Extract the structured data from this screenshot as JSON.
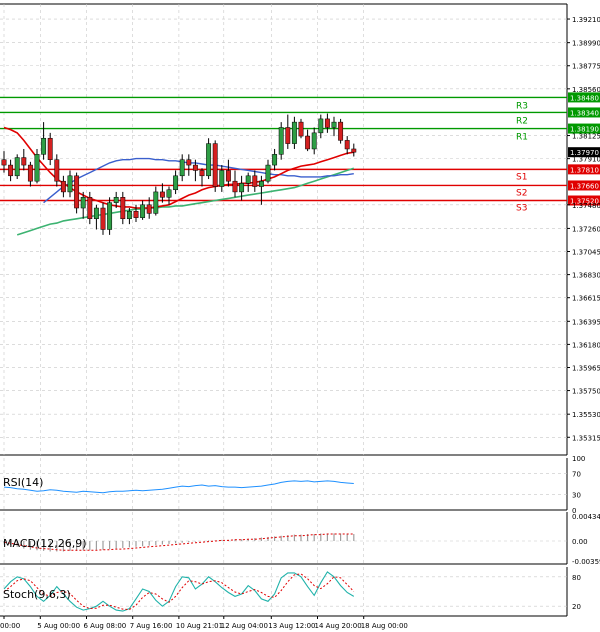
{
  "chart_data": {
    "type": "candlestick",
    "main": {
      "ylim": [
        1.3515,
        1.3935
      ],
      "y_ticks": [
        "1.39210",
        "1.38990",
        "1.38775",
        "1.38560",
        "1.38125",
        "1.37910",
        "1.37480",
        "1.37260",
        "1.37045",
        "1.36830",
        "1.36615",
        "1.36395",
        "1.36180",
        "1.35965",
        "1.35750",
        "1.35530",
        "1.35315"
      ],
      "x_ticks": [
        {
          "label": "00:00",
          "t": 0
        },
        {
          "label": "5 Aug 00:00",
          "t": 5.5
        },
        {
          "label": "6 Aug 08:00",
          "t": 12.5
        },
        {
          "label": "7 Aug 16:00",
          "t": 19.5
        },
        {
          "label": "10 Aug 21:01",
          "t": 26.5
        },
        {
          "label": "12 Aug 04:00",
          "t": 33.3
        },
        {
          "label": "13 Aug 12:00",
          "t": 40.5
        },
        {
          "label": "14 Aug 20:00",
          "t": 47.5
        },
        {
          "label": "18 Aug 00:00",
          "t": 54.5
        }
      ],
      "candles": [
        [
          1.379,
          1.3798,
          1.3778,
          1.3785
        ],
        [
          1.3785,
          1.379,
          1.377,
          1.3775
        ],
        [
          1.3775,
          1.3795,
          1.3772,
          1.3792
        ],
        [
          1.3792,
          1.38,
          1.378,
          1.3785
        ],
        [
          1.3785,
          1.3788,
          1.3765,
          1.377
        ],
        [
          1.377,
          1.38,
          1.3768,
          1.3795
        ],
        [
          1.3795,
          1.3825,
          1.379,
          1.381
        ],
        [
          1.381,
          1.3815,
          1.3785,
          1.379
        ],
        [
          1.379,
          1.3795,
          1.3765,
          1.377
        ],
        [
          1.377,
          1.3775,
          1.3755,
          1.376
        ],
        [
          1.376,
          1.378,
          1.3755,
          1.3775
        ],
        [
          1.3775,
          1.3778,
          1.374,
          1.3745
        ],
        [
          1.3745,
          1.376,
          1.3735,
          1.3755
        ],
        [
          1.3755,
          1.376,
          1.373,
          1.3735
        ],
        [
          1.3735,
          1.3748,
          1.3725,
          1.3745
        ],
        [
          1.3745,
          1.375,
          1.372,
          1.3725
        ],
        [
          1.3725,
          1.3755,
          1.372,
          1.375
        ],
        [
          1.375,
          1.376,
          1.3745,
          1.3755
        ],
        [
          1.3755,
          1.376,
          1.373,
          1.3735
        ],
        [
          1.3735,
          1.3745,
          1.373,
          1.3742
        ],
        [
          1.3742,
          1.3748,
          1.3732,
          1.3736
        ],
        [
          1.3736,
          1.3752,
          1.3734,
          1.3748
        ],
        [
          1.3748,
          1.3755,
          1.3735,
          1.374
        ],
        [
          1.374,
          1.3765,
          1.3738,
          1.376
        ],
        [
          1.376,
          1.3768,
          1.375,
          1.3755
        ],
        [
          1.3755,
          1.3765,
          1.3748,
          1.3762
        ],
        [
          1.3762,
          1.378,
          1.3758,
          1.3775
        ],
        [
          1.3775,
          1.3795,
          1.377,
          1.379
        ],
        [
          1.379,
          1.3795,
          1.3775,
          1.3785
        ],
        [
          1.3785,
          1.379,
          1.377,
          1.378
        ],
        [
          1.378,
          1.3782,
          1.3765,
          1.3775
        ],
        [
          1.3775,
          1.381,
          1.3772,
          1.3805
        ],
        [
          1.3805,
          1.3808,
          1.376,
          1.3765
        ],
        [
          1.3765,
          1.3785,
          1.376,
          1.378
        ],
        [
          1.378,
          1.379,
          1.3765,
          1.377
        ],
        [
          1.377,
          1.378,
          1.3755,
          1.376
        ],
        [
          1.376,
          1.3775,
          1.3752,
          1.3768
        ],
        [
          1.3768,
          1.3778,
          1.376,
          1.3775
        ],
        [
          1.3775,
          1.378,
          1.376,
          1.3765
        ],
        [
          1.3765,
          1.3775,
          1.3748,
          1.377
        ],
        [
          1.377,
          1.379,
          1.3768,
          1.3785
        ],
        [
          1.3785,
          1.38,
          1.378,
          1.3795
        ],
        [
          1.3795,
          1.3825,
          1.379,
          1.382
        ],
        [
          1.382,
          1.3832,
          1.38,
          1.3805
        ],
        [
          1.3805,
          1.383,
          1.38,
          1.3825
        ],
        [
          1.3825,
          1.3828,
          1.381,
          1.3812
        ],
        [
          1.3812,
          1.3818,
          1.3798,
          1.38
        ],
        [
          1.38,
          1.382,
          1.3795,
          1.3815
        ],
        [
          1.3815,
          1.3832,
          1.381,
          1.3828
        ],
        [
          1.3828,
          1.3833,
          1.3815,
          1.382
        ],
        [
          1.382,
          1.383,
          1.3812,
          1.3825
        ],
        [
          1.3825,
          1.3828,
          1.3805,
          1.3808
        ],
        [
          1.3808,
          1.3812,
          1.3795,
          1.38
        ],
        [
          1.38,
          1.3805,
          1.3793,
          1.3797
        ]
      ],
      "ma_red": [
        1.382,
        1.3818,
        1.3815,
        1.3808,
        1.38,
        1.3792,
        1.3785,
        1.3778,
        1.3772,
        1.3768,
        1.3764,
        1.376,
        1.3757,
        1.3754,
        1.3752,
        1.375,
        1.3748,
        1.3747,
        1.3746,
        1.3746,
        1.3745,
        1.3745,
        1.3745,
        1.3746,
        1.3747,
        1.3748,
        1.3751,
        1.3754,
        1.3757,
        1.3759,
        1.3762,
        1.3764,
        1.3765,
        1.3766,
        1.3767,
        1.3767,
        1.3768,
        1.3768,
        1.3769,
        1.377,
        1.3772,
        1.3774,
        1.3777,
        1.378,
        1.3782,
        1.3784,
        1.3785,
        1.3786,
        1.3788,
        1.379,
        1.3792,
        1.3794,
        1.3796,
        1.3797
      ],
      "ma_blue": [
        1.375,
        1.3755,
        1.376,
        1.3765,
        1.3768,
        1.3772,
        1.3775,
        1.3778,
        1.3781,
        1.3784,
        1.3787,
        1.3789,
        1.379,
        1.379,
        1.3791,
        1.3791,
        1.3791,
        1.379,
        1.379,
        1.3789,
        1.3789,
        1.3788,
        1.3787,
        1.3787,
        1.3786,
        1.3785,
        1.3785,
        1.3784,
        1.3783,
        1.3782,
        1.3781,
        1.378,
        1.3779,
        1.3778,
        1.3777,
        1.3776,
        1.3776,
        1.3775,
        1.3775,
        1.3774,
        1.3774,
        1.3774,
        1.3774,
        1.3775,
        1.3775,
        1.3776,
        1.3776,
        1.3777
      ],
      "ma_green": [
        1.372,
        1.3722,
        1.3724,
        1.3726,
        1.3728,
        1.373,
        1.3731,
        1.3733,
        1.3734,
        1.3735,
        1.3736,
        1.3737,
        1.3738,
        1.3739,
        1.374,
        1.3741,
        1.3742,
        1.3743,
        1.3744,
        1.3744,
        1.3745,
        1.3745,
        1.3746,
        1.3746,
        1.3747,
        1.3747,
        1.3748,
        1.3749,
        1.375,
        1.3751,
        1.3752,
        1.3753,
        1.3754,
        1.3755,
        1.3756,
        1.3757,
        1.3758,
        1.3759,
        1.376,
        1.3761,
        1.3762,
        1.3763,
        1.3764,
        1.3766,
        1.3768,
        1.377,
        1.3772,
        1.3774,
        1.3776,
        1.3778,
        1.378,
        1.3782
      ],
      "last_price": {
        "label": "1.37970",
        "value": 1.3797
      },
      "levels": [
        {
          "name": "R3",
          "label": "1.38480",
          "value": 1.3848,
          "color": "#009900"
        },
        {
          "name": "R2",
          "label": "1.38340",
          "value": 1.3834,
          "color": "#009900"
        },
        {
          "name": "R1",
          "label": "1.38190",
          "value": 1.3819,
          "color": "#009900"
        },
        {
          "name": "S1",
          "label": "1.37810",
          "value": 1.3781,
          "color": "#e00000"
        },
        {
          "name": "S2",
          "label": "1.37660",
          "value": 1.3766,
          "color": "#e00000"
        },
        {
          "name": "S3",
          "label": "1.37520",
          "value": 1.3752,
          "color": "#e00000"
        }
      ]
    },
    "rsi": {
      "label": "RSI(14)",
      "y_ticks": [
        "100",
        "70",
        "30",
        "0"
      ],
      "values": [
        44,
        43,
        41,
        40,
        38,
        36,
        37,
        39,
        38,
        36,
        35,
        34,
        36,
        35,
        34,
        33,
        35,
        36,
        36,
        37,
        38,
        37,
        38,
        39,
        40,
        42,
        44,
        46,
        45,
        47,
        48,
        46,
        47,
        45,
        44,
        44,
        43,
        44,
        45,
        46,
        48,
        50,
        53,
        55,
        56,
        55,
        56,
        54,
        55,
        56,
        55,
        53,
        52,
        51
      ]
    },
    "macd": {
      "label": "MACD(12,26,9)",
      "y_ticks": [
        "0.00434",
        "0.00",
        "-0.003597"
      ],
      "values": [
        -0.0004,
        -0.0007,
        -0.001,
        -0.0013,
        -0.0015,
        -0.0016,
        -0.0017,
        -0.0018,
        -0.0018,
        -0.0018,
        -0.0017,
        -0.0017,
        -0.0016,
        -0.0016,
        -0.0015,
        -0.0015,
        -0.0014,
        -0.0013,
        -0.0012,
        -0.0011,
        -0.001,
        -0.0009,
        -0.0008,
        -0.0007,
        -0.0006,
        -0.0005,
        -0.0004,
        -0.0003,
        -0.0002,
        -0.0001,
        0.0,
        0.0001,
        0.0001,
        0.0002,
        0.0002,
        0.0003,
        0.0003,
        0.0004,
        0.0005,
        0.0006,
        0.0007,
        0.0008,
        0.0009,
        0.001,
        0.0011,
        0.0011,
        0.0012,
        0.0012,
        0.0013,
        0.0013,
        0.0013,
        0.0013,
        0.0012,
        0.0012
      ],
      "signal": [
        -0.0002,
        -0.0004,
        -0.0006,
        -0.0008,
        -0.001,
        -0.0012,
        -0.0013,
        -0.0014,
        -0.0015,
        -0.0016,
        -0.0016,
        -0.0016,
        -0.0016,
        -0.0016,
        -0.0016,
        -0.0015,
        -0.0015,
        -0.0014,
        -0.0014,
        -0.0013,
        -0.0012,
        -0.0011,
        -0.001,
        -0.0009,
        -0.0008,
        -0.0007,
        -0.0006,
        -0.0005,
        -0.0004,
        -0.0003,
        -0.0002,
        -0.0001,
        0.0,
        0.0001,
        0.0001,
        0.0002,
        0.0002,
        0.0003,
        0.0003,
        0.0004,
        0.0005,
        0.0006,
        0.0007,
        0.0008,
        0.0009,
        0.0009,
        0.001,
        0.0011,
        0.0011,
        0.0012,
        0.0012,
        0.0012,
        0.0012,
        0.0012
      ]
    },
    "stoch": {
      "label": "Stoch(9,6,3)",
      "y_ticks": [
        "80",
        "20"
      ],
      "k": [
        55,
        70,
        80,
        76,
        60,
        40,
        30,
        42,
        60,
        45,
        30,
        18,
        12,
        15,
        20,
        30,
        20,
        12,
        10,
        15,
        35,
        55,
        50,
        32,
        20,
        30,
        60,
        80,
        78,
        55,
        65,
        80,
        70,
        58,
        48,
        40,
        45,
        62,
        52,
        35,
        30,
        45,
        78,
        88,
        88,
        80,
        60,
        42,
        68,
        90,
        80,
        62,
        48,
        40
      ],
      "d": [
        50,
        60,
        72,
        76,
        72,
        58,
        45,
        40,
        48,
        50,
        46,
        32,
        20,
        15,
        16,
        22,
        22,
        18,
        14,
        13,
        22,
        38,
        48,
        45,
        35,
        28,
        40,
        58,
        72,
        70,
        65,
        70,
        72,
        68,
        58,
        49,
        45,
        50,
        54,
        48,
        40,
        38,
        52,
        70,
        84,
        86,
        76,
        62,
        56,
        66,
        80,
        78,
        64,
        50
      ]
    }
  }
}
